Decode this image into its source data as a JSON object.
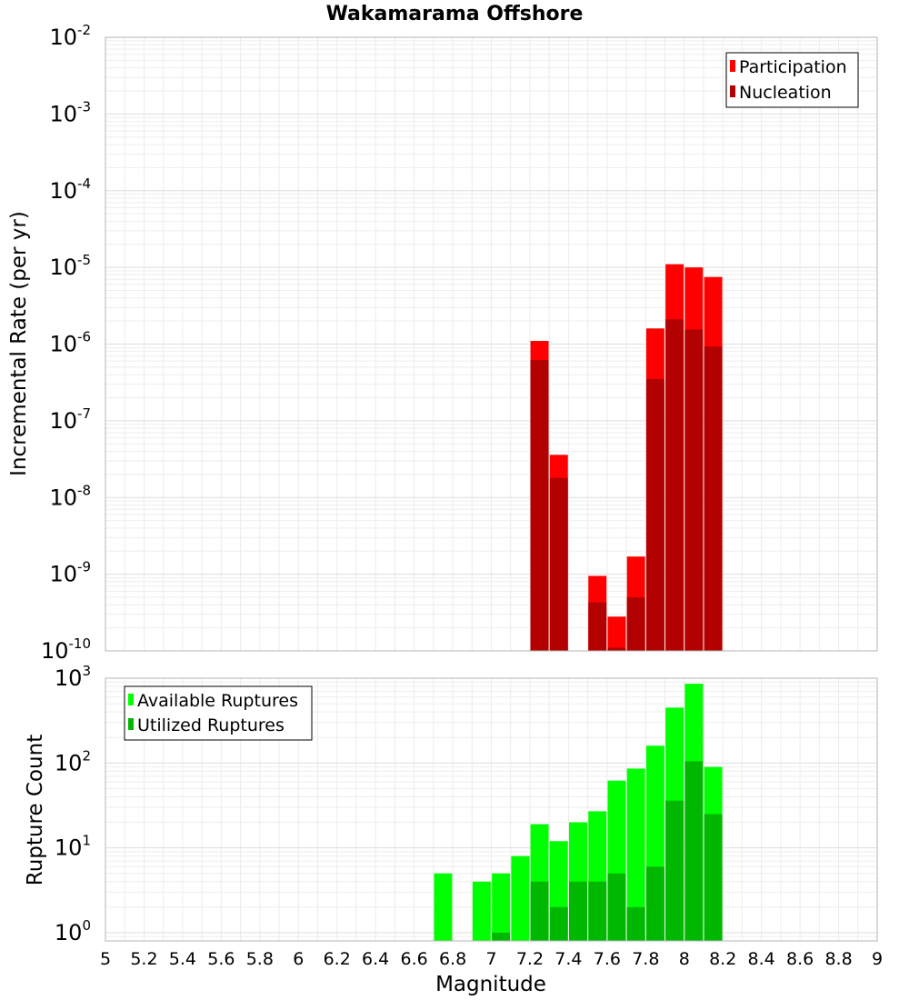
{
  "chart_data": [
    {
      "type": "bar",
      "title": "Wakamarama Offshore",
      "xlabel": "",
      "ylabel": "Incremental Rate (per yr)",
      "yscale": "log",
      "xlim": [
        5,
        9
      ],
      "ylim": [
        1e-10,
        0.01
      ],
      "grid": true,
      "legend_position": "top-right",
      "y_ticks": [
        {
          "base": "10",
          "exp": "-10",
          "v": 1e-10
        },
        {
          "base": "10",
          "exp": "-9",
          "v": 1e-09
        },
        {
          "base": "10",
          "exp": "-8",
          "v": 1e-08
        },
        {
          "base": "10",
          "exp": "-7",
          "v": 1e-07
        },
        {
          "base": "10",
          "exp": "-6",
          "v": 1e-06
        },
        {
          "base": "10",
          "exp": "-5",
          "v": 1e-05
        },
        {
          "base": "10",
          "exp": "-4",
          "v": 0.0001
        },
        {
          "base": "10",
          "exp": "-3",
          "v": 0.001
        },
        {
          "base": "10",
          "exp": "-2",
          "v": 0.01
        }
      ],
      "x": [
        7.25,
        7.35,
        7.55,
        7.65,
        7.75,
        7.85,
        7.95,
        8.05,
        8.15
      ],
      "series": [
        {
          "name": "Participation",
          "color": "#ff0000",
          "values": [
            1.1e-06,
            3.6e-08,
            9.5e-10,
            2.8e-10,
            1.7e-09,
            1.6e-06,
            1.1e-05,
            1e-05,
            7.5e-06
          ]
        },
        {
          "name": "Nucleation",
          "color": "#b30000",
          "values": [
            6.2e-07,
            1.8e-08,
            4.3e-10,
            1.1e-10,
            5e-10,
            3.5e-07,
            2.1e-06,
            1.55e-06,
            9.3e-07
          ]
        }
      ]
    },
    {
      "type": "bar",
      "title": "",
      "xlabel": "Magnitude",
      "ylabel": "Rupture Count",
      "yscale": "log",
      "xlim": [
        5,
        9
      ],
      "ylim": [
        0.8,
        1000
      ],
      "grid": true,
      "legend_position": "top-left",
      "y_ticks": [
        {
          "base": "10",
          "exp": "0",
          "v": 1
        },
        {
          "base": "10",
          "exp": "1",
          "v": 10
        },
        {
          "base": "10",
          "exp": "2",
          "v": 100
        },
        {
          "base": "10",
          "exp": "3",
          "v": 1000
        }
      ],
      "x_ticks": [
        "5",
        "5.2",
        "5.4",
        "5.6",
        "5.8",
        "6",
        "6.2",
        "6.4",
        "6.6",
        "6.8",
        "7",
        "7.2",
        "7.4",
        "7.6",
        "7.8",
        "8",
        "8.2",
        "8.4",
        "8.6",
        "8.8",
        "9"
      ],
      "x": [
        6.75,
        6.95,
        7.05,
        7.15,
        7.25,
        7.35,
        7.45,
        7.55,
        7.65,
        7.75,
        7.85,
        7.95,
        8.05,
        8.15
      ],
      "series": [
        {
          "name": "Available Ruptures",
          "color": "#00ff00",
          "values": [
            5,
            4,
            5,
            8,
            19,
            12,
            20,
            27,
            62,
            86,
            160,
            450,
            860,
            90
          ]
        },
        {
          "name": "Utilized Ruptures",
          "color": "#00b800",
          "values": [
            null,
            null,
            1,
            null,
            4,
            2,
            4,
            4,
            5,
            2,
            6,
            36,
            105,
            25
          ]
        }
      ]
    }
  ]
}
